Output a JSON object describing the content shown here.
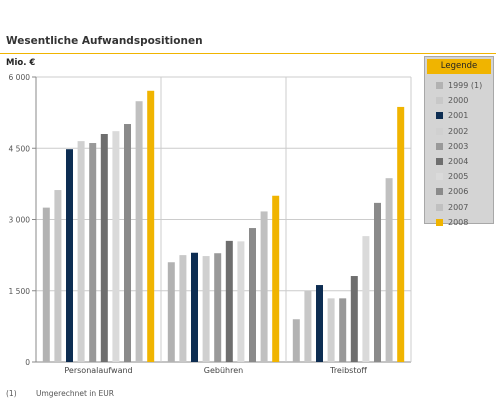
{
  "title": "Wesentliche Aufwandspositionen",
  "unit_label": "Mio. €",
  "legend": {
    "title": "Legende",
    "items": [
      {
        "label": "1999 (1)",
        "color": "#b2b2b2"
      },
      {
        "label": "2000",
        "color": "#c8c8c8"
      },
      {
        "label": "2001",
        "color": "#0d2d52"
      },
      {
        "label": "2002",
        "color": "#d0d0d0"
      },
      {
        "label": "2003",
        "color": "#999999"
      },
      {
        "label": "2004",
        "color": "#6e6e6e"
      },
      {
        "label": "2005",
        "color": "#dadada"
      },
      {
        "label": "2006",
        "color": "#8a8a8a"
      },
      {
        "label": "2007",
        "color": "#c0c0c0"
      },
      {
        "label": "2008",
        "color": "#f0b400"
      }
    ]
  },
  "footnote": {
    "marker": "(1)",
    "text": "Umgerechnet in EUR"
  },
  "chart_data": {
    "type": "bar",
    "title": "Wesentliche Aufwandspositionen",
    "ylabel": "Mio. €",
    "ylim": [
      0,
      6000
    ],
    "yticks": [
      0,
      1500,
      3000,
      4500,
      6000
    ],
    "ytick_labels": [
      "0",
      "1 500",
      "3 000",
      "4 500",
      "6 000"
    ],
    "categories": [
      "Personalaufwand",
      "Gebühren",
      "Treibstoff"
    ],
    "series": [
      {
        "name": "1999 (1)",
        "color": "#b2b2b2",
        "values": [
          3250,
          2100,
          900
        ]
      },
      {
        "name": "2000",
        "color": "#c8c8c8",
        "values": [
          3620,
          2250,
          1500
        ]
      },
      {
        "name": "2001",
        "color": "#0d2d52",
        "values": [
          4480,
          2300,
          1620
        ]
      },
      {
        "name": "2002",
        "color": "#d0d0d0",
        "values": [
          4650,
          2230,
          1340
        ]
      },
      {
        "name": "2003",
        "color": "#999999",
        "values": [
          4610,
          2290,
          1340
        ]
      },
      {
        "name": "2004",
        "color": "#6e6e6e",
        "values": [
          4800,
          2550,
          1810
        ]
      },
      {
        "name": "2005",
        "color": "#dadada",
        "values": [
          4860,
          2540,
          2650
        ]
      },
      {
        "name": "2006",
        "color": "#8a8a8a",
        "values": [
          5010,
          2820,
          3350
        ]
      },
      {
        "name": "2007",
        "color": "#c0c0c0",
        "values": [
          5490,
          3170,
          3870
        ]
      },
      {
        "name": "2008",
        "color": "#f0b400",
        "values": [
          5710,
          3500,
          5370
        ]
      }
    ],
    "grid": true,
    "legend_position": "right"
  }
}
